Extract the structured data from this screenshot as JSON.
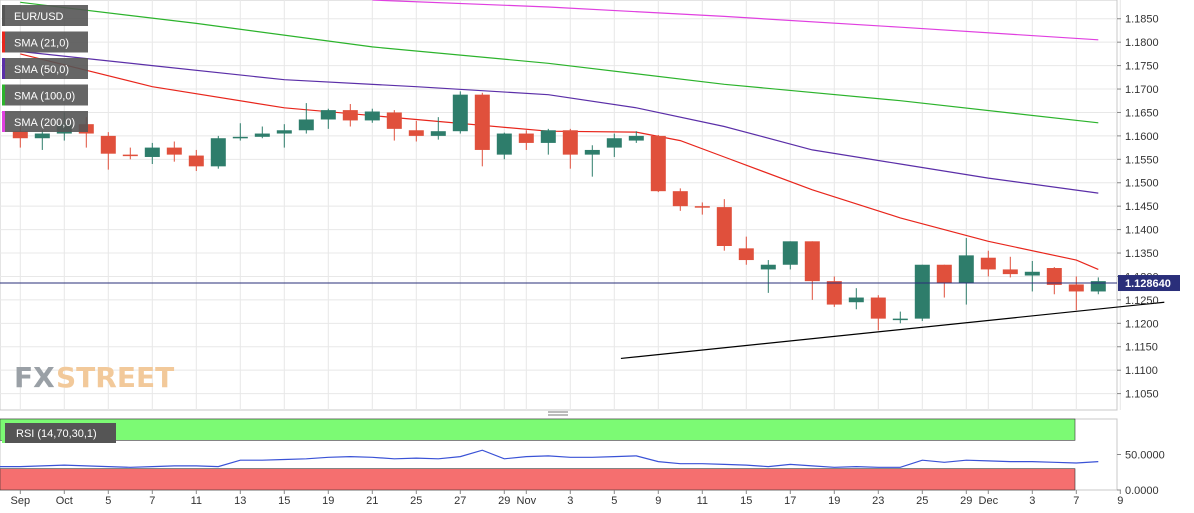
{
  "chart_data": {
    "type": "candlestick",
    "symbol": "EUR/USD",
    "price_axis": {
      "min": 1.1015,
      "max": 1.189,
      "ticks": [
        "1.1850",
        "1.1800",
        "1.1750",
        "1.1700",
        "1.1650",
        "1.1600",
        "1.1550",
        "1.1500",
        "1.1450",
        "1.1400",
        "1.1350",
        "1.1300",
        "1.1250",
        "1.1200",
        "1.1150",
        "1.1100",
        "1.1050"
      ],
      "last_price": 1.1286,
      "last_price_label": "1.128640"
    },
    "date_labels": [
      {
        "i": 0,
        "label": "Sep"
      },
      {
        "i": 2,
        "label": "Oct"
      },
      {
        "i": 4,
        "label": "5"
      },
      {
        "i": 6,
        "label": "7"
      },
      {
        "i": 8,
        "label": "11"
      },
      {
        "i": 10,
        "label": "13"
      },
      {
        "i": 12,
        "label": "15"
      },
      {
        "i": 14,
        "label": "19"
      },
      {
        "i": 16,
        "label": "21"
      },
      {
        "i": 18,
        "label": "25"
      },
      {
        "i": 20,
        "label": "27"
      },
      {
        "i": 22,
        "label": "29"
      },
      {
        "i": 23,
        "label": "Nov"
      },
      {
        "i": 25,
        "label": "3"
      },
      {
        "i": 27,
        "label": "5"
      },
      {
        "i": 29,
        "label": "9"
      },
      {
        "i": 31,
        "label": "11"
      },
      {
        "i": 33,
        "label": "15"
      },
      {
        "i": 35,
        "label": "17"
      },
      {
        "i": 37,
        "label": "19"
      },
      {
        "i": 39,
        "label": "23"
      },
      {
        "i": 41,
        "label": "25"
      },
      {
        "i": 43,
        "label": "29"
      },
      {
        "i": 44,
        "label": "Dec"
      },
      {
        "i": 46,
        "label": "3"
      },
      {
        "i": 48,
        "label": "7"
      },
      {
        "i": 50,
        "label": "9"
      }
    ],
    "candles": [
      {
        "o": 1.161,
        "h": 1.162,
        "l": 1.1575,
        "c": 1.1595
      },
      {
        "o": 1.1595,
        "h": 1.1612,
        "l": 1.157,
        "c": 1.1605
      },
      {
        "o": 1.1605,
        "h": 1.165,
        "l": 1.159,
        "c": 1.1625
      },
      {
        "o": 1.1625,
        "h": 1.164,
        "l": 1.1575,
        "c": 1.1605
      },
      {
        "o": 1.16,
        "h": 1.1608,
        "l": 1.1528,
        "c": 1.1562
      },
      {
        "o": 1.156,
        "h": 1.1575,
        "l": 1.155,
        "c": 1.1558
      },
      {
        "o": 1.1555,
        "h": 1.1585,
        "l": 1.154,
        "c": 1.1575
      },
      {
        "o": 1.1575,
        "h": 1.1588,
        "l": 1.1545,
        "c": 1.156
      },
      {
        "o": 1.1558,
        "h": 1.157,
        "l": 1.1525,
        "c": 1.1535
      },
      {
        "o": 1.1535,
        "h": 1.16,
        "l": 1.153,
        "c": 1.1595
      },
      {
        "o": 1.1595,
        "h": 1.1627,
        "l": 1.159,
        "c": 1.1598
      },
      {
        "o": 1.1598,
        "h": 1.162,
        "l": 1.1595,
        "c": 1.1605
      },
      {
        "o": 1.1605,
        "h": 1.1625,
        "l": 1.1575,
        "c": 1.1612
      },
      {
        "o": 1.1612,
        "h": 1.167,
        "l": 1.1605,
        "c": 1.1635
      },
      {
        "o": 1.1635,
        "h": 1.1658,
        "l": 1.1615,
        "c": 1.1655
      },
      {
        "o": 1.1655,
        "h": 1.1668,
        "l": 1.162,
        "c": 1.1633
      },
      {
        "o": 1.1633,
        "h": 1.1658,
        "l": 1.1628,
        "c": 1.1652
      },
      {
        "o": 1.165,
        "h": 1.1655,
        "l": 1.159,
        "c": 1.1615
      },
      {
        "o": 1.1612,
        "h": 1.1632,
        "l": 1.1588,
        "c": 1.16
      },
      {
        "o": 1.16,
        "h": 1.164,
        "l": 1.1592,
        "c": 1.161
      },
      {
        "o": 1.161,
        "h": 1.1695,
        "l": 1.1605,
        "c": 1.1688
      },
      {
        "o": 1.1688,
        "h": 1.1692,
        "l": 1.1535,
        "c": 1.157
      },
      {
        "o": 1.156,
        "h": 1.1607,
        "l": 1.155,
        "c": 1.1605
      },
      {
        "o": 1.1605,
        "h": 1.1612,
        "l": 1.157,
        "c": 1.1585
      },
      {
        "o": 1.1585,
        "h": 1.1615,
        "l": 1.156,
        "c": 1.1612
      },
      {
        "o": 1.1612,
        "h": 1.1615,
        "l": 1.153,
        "c": 1.156
      },
      {
        "o": 1.156,
        "h": 1.158,
        "l": 1.1513,
        "c": 1.157
      },
      {
        "o": 1.1575,
        "h": 1.1605,
        "l": 1.1555,
        "c": 1.1595
      },
      {
        "o": 1.159,
        "h": 1.161,
        "l": 1.1585,
        "c": 1.16
      },
      {
        "o": 1.16,
        "h": 1.1602,
        "l": 1.148,
        "c": 1.1482
      },
      {
        "o": 1.1482,
        "h": 1.1488,
        "l": 1.144,
        "c": 1.145
      },
      {
        "o": 1.145,
        "h": 1.1458,
        "l": 1.1432,
        "c": 1.1448
      },
      {
        "o": 1.1448,
        "h": 1.1465,
        "l": 1.1355,
        "c": 1.1365
      },
      {
        "o": 1.136,
        "h": 1.1385,
        "l": 1.1325,
        "c": 1.1335
      },
      {
        "o": 1.1315,
        "h": 1.1335,
        "l": 1.1265,
        "c": 1.1325
      },
      {
        "o": 1.1325,
        "h": 1.1375,
        "l": 1.1315,
        "c": 1.1375
      },
      {
        "o": 1.1375,
        "h": 1.1375,
        "l": 1.125,
        "c": 1.129
      },
      {
        "o": 1.129,
        "h": 1.13,
        "l": 1.1235,
        "c": 1.124
      },
      {
        "o": 1.1245,
        "h": 1.1275,
        "l": 1.123,
        "c": 1.1255
      },
      {
        "o": 1.1255,
        "h": 1.126,
        "l": 1.1185,
        "c": 1.121
      },
      {
        "o": 1.1208,
        "h": 1.1225,
        "l": 1.12,
        "c": 1.121
      },
      {
        "o": 1.121,
        "h": 1.1325,
        "l": 1.1205,
        "c": 1.1325
      },
      {
        "o": 1.1325,
        "h": 1.1325,
        "l": 1.1255,
        "c": 1.1285
      },
      {
        "o": 1.1285,
        "h": 1.1382,
        "l": 1.124,
        "c": 1.1345
      },
      {
        "o": 1.134,
        "h": 1.1355,
        "l": 1.13,
        "c": 1.1315
      },
      {
        "o": 1.1315,
        "h": 1.1342,
        "l": 1.1298,
        "c": 1.1305
      },
      {
        "o": 1.1302,
        "h": 1.1333,
        "l": 1.1268,
        "c": 1.131
      },
      {
        "o": 1.1318,
        "h": 1.132,
        "l": 1.1262,
        "c": 1.1282
      },
      {
        "o": 1.1283,
        "h": 1.13,
        "l": 1.1228,
        "c": 1.1268
      },
      {
        "o": 1.1268,
        "h": 1.1298,
        "l": 1.1262,
        "c": 1.129
      }
    ],
    "moving_averages": [
      {
        "name": "SMA (21,0)",
        "color": "#e8261c",
        "points": [
          [
            0,
            1.1775
          ],
          [
            6,
            1.1705
          ],
          [
            12,
            1.166
          ],
          [
            18,
            1.1635
          ],
          [
            24,
            1.161
          ],
          [
            28,
            1.1608
          ],
          [
            30,
            1.159
          ],
          [
            32,
            1.1555
          ],
          [
            36,
            1.1485
          ],
          [
            40,
            1.1425
          ],
          [
            44,
            1.1375
          ],
          [
            48,
            1.1335
          ],
          [
            49,
            1.1315
          ]
        ]
      },
      {
        "name": "SMA (50,0)",
        "color": "#5b2fa8",
        "points": [
          [
            0,
            1.178
          ],
          [
            6,
            1.175
          ],
          [
            12,
            1.172
          ],
          [
            18,
            1.1705
          ],
          [
            24,
            1.1688
          ],
          [
            28,
            1.166
          ],
          [
            32,
            1.162
          ],
          [
            36,
            1.157
          ],
          [
            40,
            1.154
          ],
          [
            44,
            1.151
          ],
          [
            49,
            1.1478
          ]
        ]
      },
      {
        "name": "SMA (100,0)",
        "color": "#2cb32c",
        "points": [
          [
            0,
            1.1885
          ],
          [
            8,
            1.184
          ],
          [
            16,
            1.179
          ],
          [
            24,
            1.1755
          ],
          [
            32,
            1.171
          ],
          [
            40,
            1.1675
          ],
          [
            49,
            1.1628
          ]
        ]
      },
      {
        "name": "SMA (200,0)",
        "color": "#e040e0",
        "points": [
          [
            16,
            1.189
          ],
          [
            24,
            1.1875
          ],
          [
            32,
            1.1855
          ],
          [
            40,
            1.1832
          ],
          [
            49,
            1.1805
          ]
        ]
      }
    ],
    "trendline": {
      "color": "#000000",
      "points": [
        [
          27.3,
          1.1125
        ],
        [
          52,
          1.1245
        ]
      ]
    },
    "rsi": {
      "label": "RSI (14,70,30,1)",
      "overbought": 70,
      "oversold": 30,
      "tick_labels": [
        "50.0000",
        "0.0000"
      ],
      "values": [
        33,
        34,
        35,
        34,
        33,
        32,
        33,
        34,
        34,
        33,
        42,
        42,
        43,
        44,
        46,
        47,
        46,
        44,
        45,
        44,
        47,
        56,
        44,
        47,
        48,
        46,
        46,
        47,
        48,
        40,
        37,
        37,
        36,
        35,
        33,
        36,
        34,
        32,
        33,
        32,
        32,
        42,
        39,
        42,
        41,
        40,
        40,
        39,
        38,
        40
      ]
    }
  },
  "legend": [
    {
      "label": "EUR/USD",
      "color": "#555555"
    },
    {
      "label": "SMA (21,0)",
      "color": "#e8261c"
    },
    {
      "label": "SMA (50,0)",
      "color": "#5b2fa8"
    },
    {
      "label": "SMA (100,0)",
      "color": "#2cb32c"
    },
    {
      "label": "SMA (200,0)",
      "color": "#e040e0"
    }
  ],
  "watermark": {
    "part1": "FX",
    "part2": "STREET"
  },
  "colors": {
    "bull": "#2e7d6b",
    "bear": "#e0503c",
    "rsi_line": "#3a52d6",
    "rsi_top": "#7cfa74",
    "rsi_bottom": "#f56f6f",
    "grid": "#e8e8e8"
  }
}
